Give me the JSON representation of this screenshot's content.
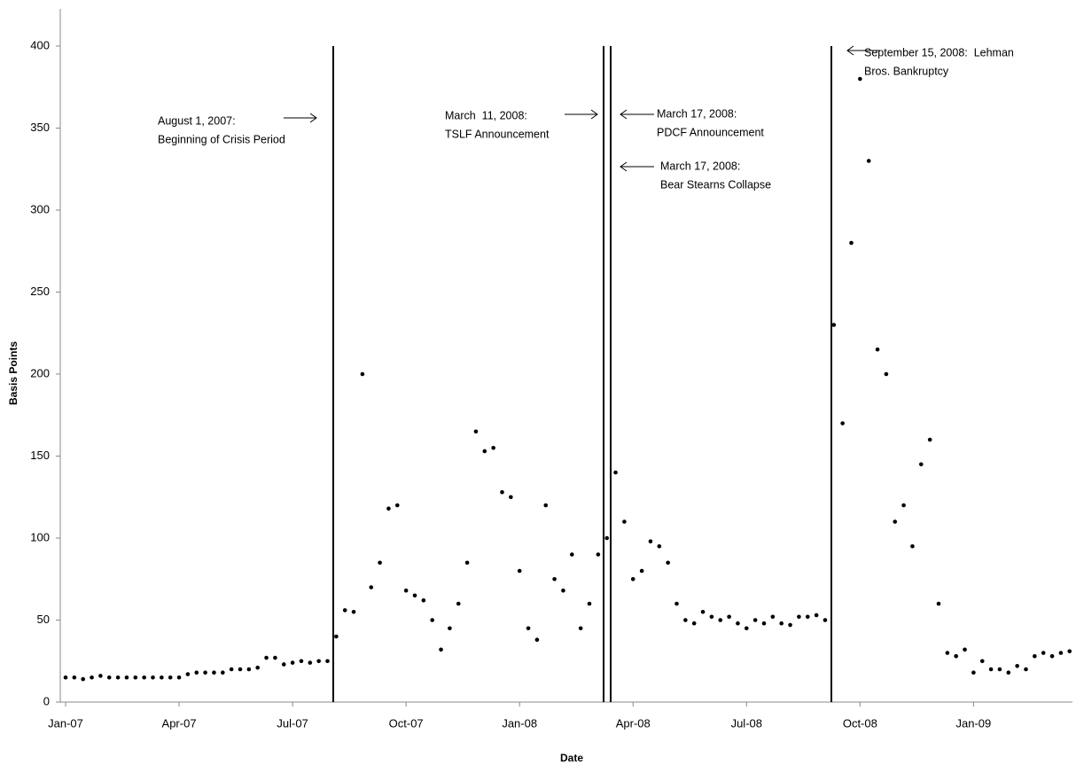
{
  "chart_data": {
    "type": "scatter",
    "x_label": "Date",
    "y_label": "Basis Points",
    "categories": [
      "Jan-07",
      null,
      null,
      null,
      null,
      null,
      null,
      null,
      null,
      null,
      null,
      null,
      null,
      "Apr-07",
      null,
      null,
      null,
      null,
      null,
      null,
      null,
      null,
      null,
      null,
      null,
      null,
      "Jul-07",
      null,
      null,
      null,
      null,
      null,
      null,
      null,
      null,
      null,
      null,
      null,
      null,
      "Oct-07",
      null,
      null,
      null,
      null,
      null,
      null,
      null,
      null,
      null,
      null,
      null,
      null,
      "Jan-08",
      null,
      null,
      null,
      null,
      null,
      null,
      null,
      null,
      null,
      null,
      null,
      null,
      "Apr-08",
      null,
      null,
      null,
      null,
      null,
      null,
      null,
      null,
      null,
      null,
      null,
      null,
      "Jul-08",
      null,
      null,
      null,
      null,
      null,
      null,
      null,
      null,
      null,
      null,
      null,
      null,
      "Oct-08",
      null,
      null,
      null,
      null,
      null,
      null,
      null,
      null,
      null,
      null,
      null,
      null,
      "Jan-09",
      null,
      null,
      null,
      null,
      null,
      null,
      null,
      null,
      null,
      null,
      null
    ],
    "values": [
      15,
      15,
      14,
      15,
      16,
      15,
      15,
      15,
      15,
      15,
      15,
      15,
      15,
      15,
      17,
      18,
      18,
      18,
      18,
      20,
      20,
      20,
      21,
      27,
      27,
      23,
      24,
      25,
      24,
      25,
      25,
      40,
      56,
      55,
      200,
      70,
      85,
      118,
      120,
      68,
      65,
      62,
      50,
      32,
      45,
      60,
      85,
      165,
      153,
      155,
      128,
      125,
      80,
      45,
      38,
      120,
      75,
      68,
      90,
      45,
      60,
      90,
      100,
      140,
      110,
      75,
      80,
      98,
      95,
      85,
      60,
      50,
      48,
      55,
      52,
      50,
      52,
      48,
      45,
      50,
      48,
      52,
      48,
      47,
      52,
      52,
      53,
      50,
      230,
      170,
      280,
      380,
      330,
      215,
      200,
      110,
      120,
      95,
      145,
      160,
      60,
      30,
      28,
      32,
      18,
      25,
      20,
      20,
      18,
      22,
      20,
      28,
      30,
      28,
      30,
      31
    ],
    "color": "#000000",
    "ylim": [
      0,
      400
    ],
    "yticks": [
      0,
      50,
      100,
      150,
      200,
      250,
      300,
      350,
      400
    ],
    "annotations": [
      [
        "August 1, 2007:",
        "Beginning of Crisis Period"
      ],
      [
        "March  11, 2008:",
        "TSLF Announcement"
      ],
      [
        "March 17, 2008:",
        "PDCF Announcement"
      ],
      [
        "March 17, 2008:",
        "Bear Stearns Collapse"
      ],
      [
        "September 15, 2008:  Lehman",
        "Bros. Bankruptcy"
      ]
    ]
  }
}
